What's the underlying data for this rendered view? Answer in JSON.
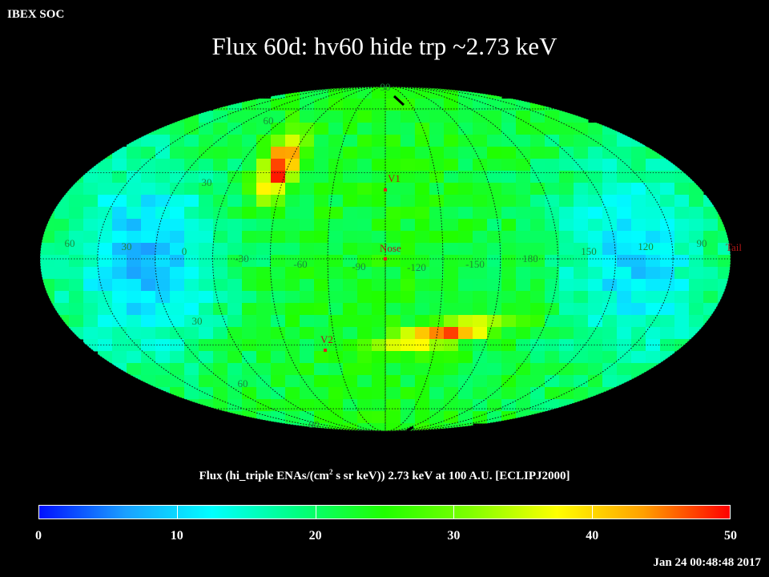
{
  "header": {
    "org": "IBEX SOC",
    "title": "Flux   60d: hv60 hide trp ~2.73 keV"
  },
  "map": {
    "projection": "aitoff / mollweide equal-area ellipse",
    "grid_labels_lat": [
      "90",
      "60",
      "30",
      "30",
      "60",
      "90"
    ],
    "grid_labels_lon": [
      "60",
      "30",
      "0",
      "-30",
      "-60",
      "-90",
      "-120",
      "-150",
      "180",
      "150",
      "120",
      "90"
    ],
    "markers": [
      {
        "id": "v1",
        "label": "V1",
        "color": "#e0201a"
      },
      {
        "id": "nose",
        "label": "Nose",
        "color": "#e0201a"
      },
      {
        "id": "v2",
        "label": "V2",
        "color": "#e0201a"
      },
      {
        "id": "tail",
        "label": "Tail",
        "color": "#e0201a"
      }
    ],
    "colormap": [
      "#0010ff",
      "#1aa0ff",
      "#00ffff",
      "#00ff80",
      "#20ff00",
      "#80ff00",
      "#ffff00",
      "#ffa000",
      "#ff0000"
    ]
  },
  "colorbar": {
    "title_pre": "Flux (hi_triple ENAs/(cm",
    "title_sup": "2",
    "title_post": " s sr keV))  2.73 keV at 100 A.U. [ECLIPJ2000]",
    "min": 0,
    "max": 50,
    "tick_labels": [
      "0",
      "10",
      "20",
      "30",
      "40",
      "50"
    ]
  },
  "footer": {
    "timestamp": "Jan 24 00:48:48 2017"
  }
}
